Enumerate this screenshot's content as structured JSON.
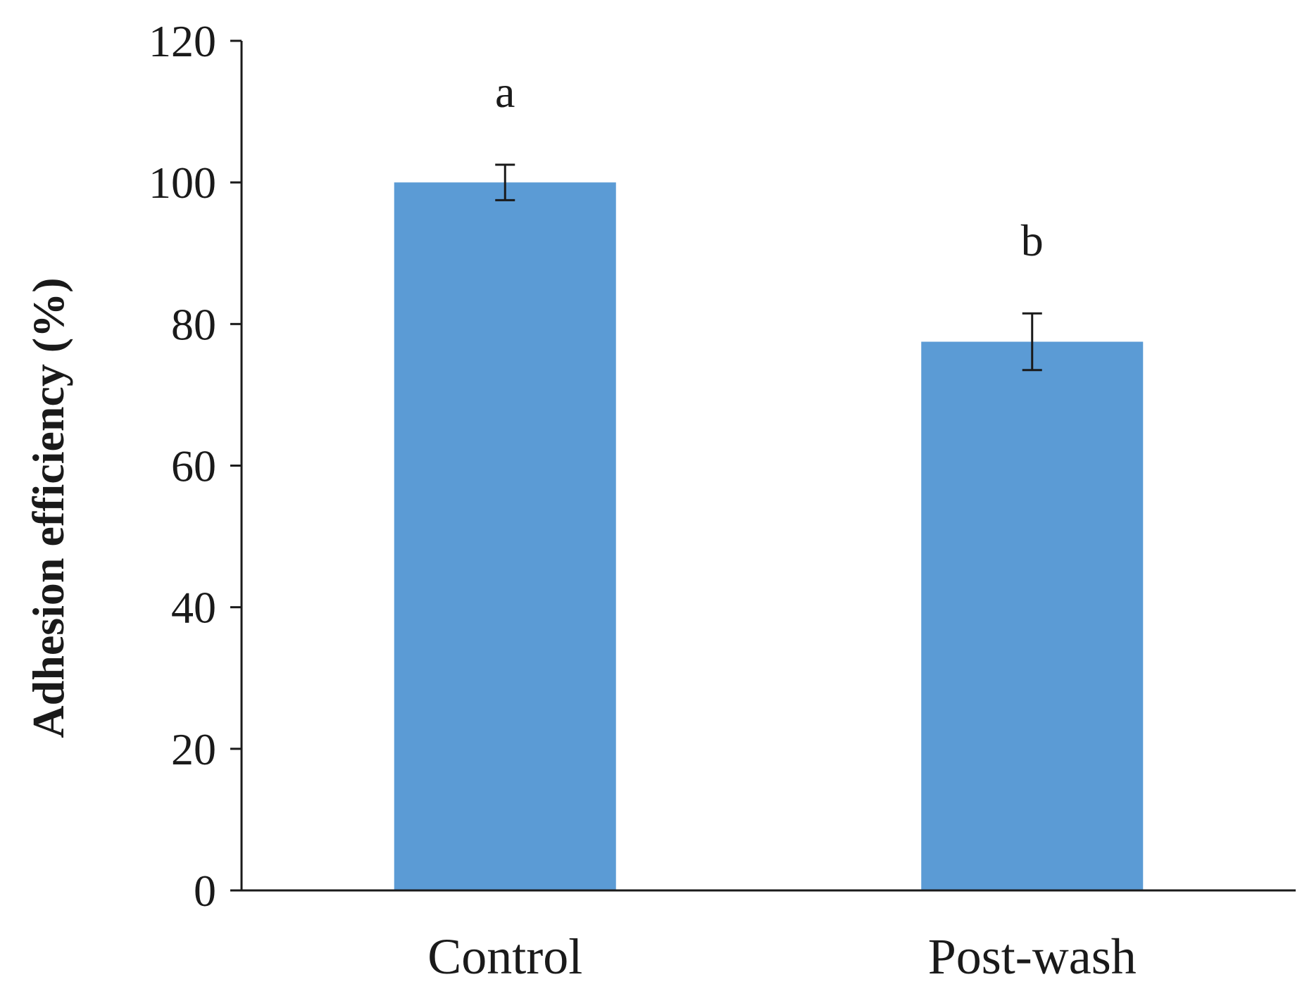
{
  "chart_data": {
    "type": "bar",
    "title": "",
    "xlabel": "",
    "ylabel": "Adhesion efficiency (%)",
    "categories": [
      "Control",
      "Post-wash"
    ],
    "values": [
      100,
      77.5
    ],
    "errors": [
      2.5,
      4
    ],
    "significance": [
      "a",
      "b"
    ],
    "ylim": [
      0,
      120
    ],
    "yticks": [
      0,
      20,
      40,
      60,
      80,
      100,
      120
    ],
    "bar_color": "#5b9bd5",
    "grid": false,
    "legend": "none"
  }
}
